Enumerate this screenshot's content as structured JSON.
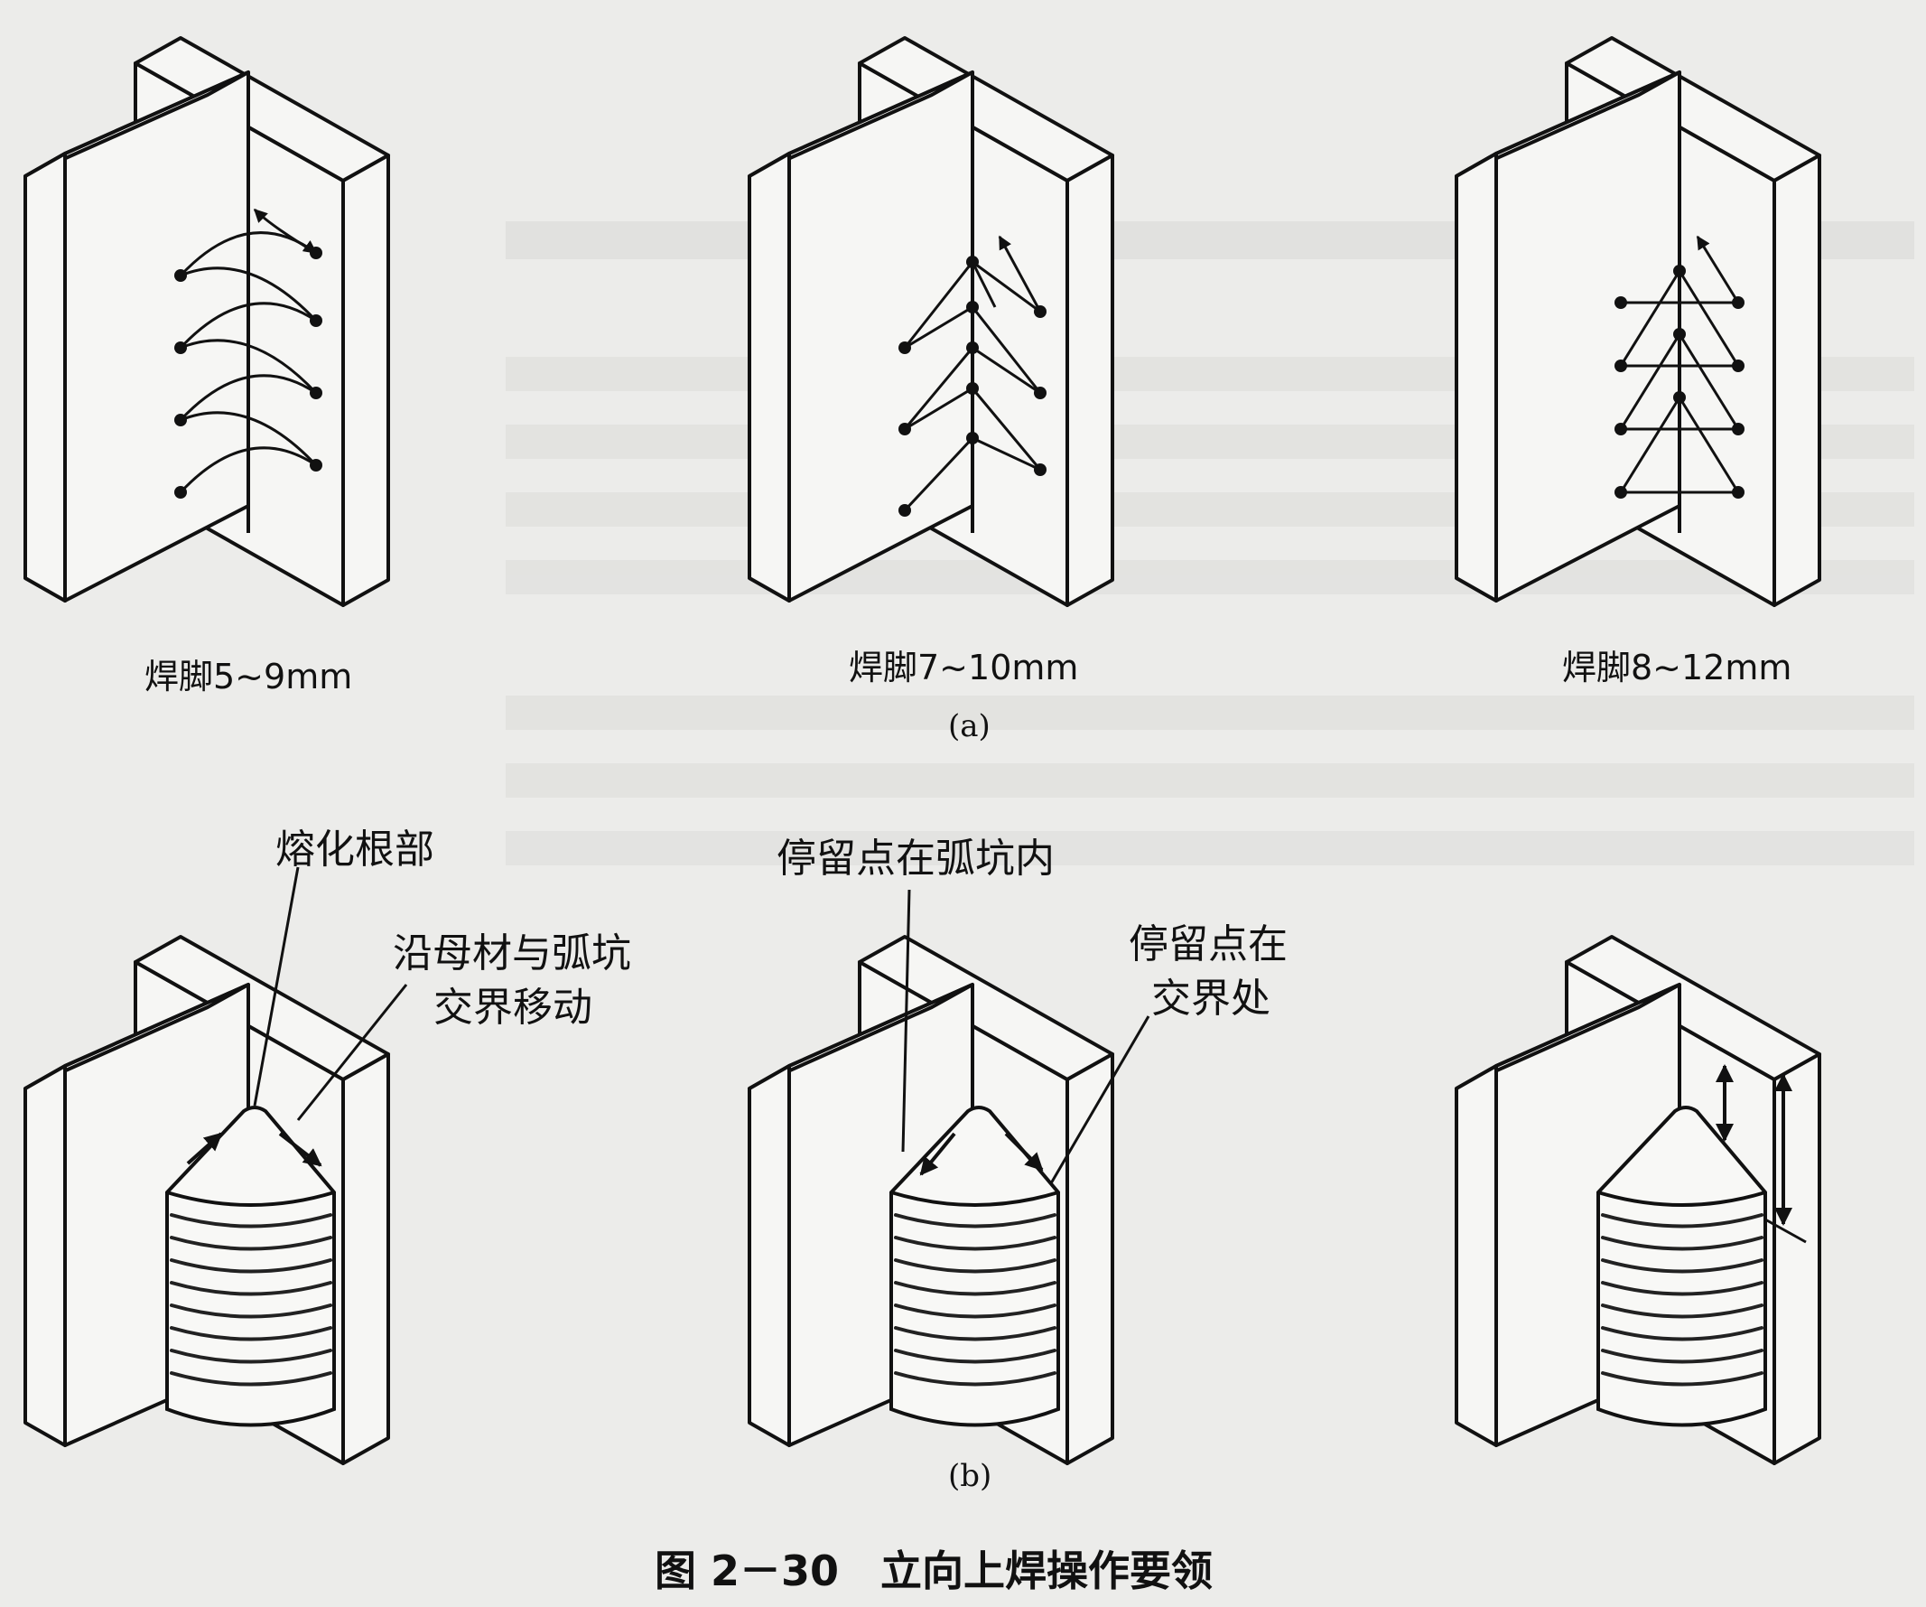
{
  "figure": {
    "panel_a": {
      "captions": [
        "焊脚5~9mm",
        "焊脚7~10mm",
        "焊脚8~12mm"
      ],
      "label": "(a)"
    },
    "panel_b": {
      "annotations": {
        "fuse_root": "熔化根部",
        "move_line1": "沿母材与弧坑",
        "move_line2": "交界移动",
        "stop_crater": "停留点在弧坑内",
        "stop_boundary_line1": "停留点在",
        "stop_boundary_line2": "交界处"
      },
      "label": "(b)"
    },
    "caption": "图 2－30　立向上焊操作要领"
  }
}
